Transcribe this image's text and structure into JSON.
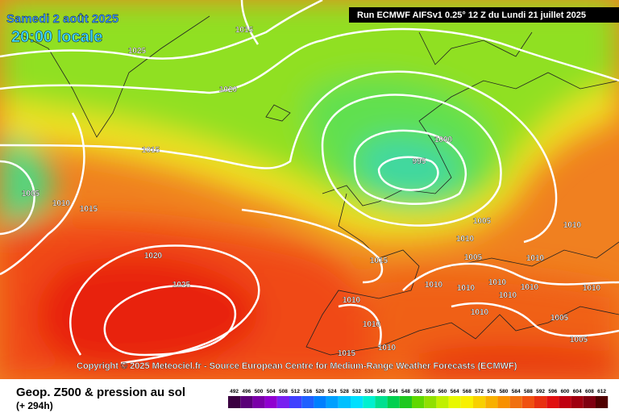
{
  "header": {
    "date": "Samedi 2 août 2025",
    "time": "20:00 locale",
    "run": "Run ECMWF AIFSv1 0.25° 12 Z du Lundi 21 juillet 2025"
  },
  "isobar_labels": [
    "1015",
    "1025",
    "1020",
    "1015",
    "1005",
    "1010",
    "1015",
    "1020",
    "1025",
    "995",
    "1000",
    "1005",
    "1010",
    "1010",
    "1005",
    "1010",
    "1015",
    "1010",
    "1010",
    "1010",
    "1010",
    "1010",
    "1010",
    "1010",
    "1010",
    "1010",
    "1005",
    "1010",
    "1015",
    "1005"
  ],
  "footer": {
    "copyright": "Copyright © 2025 Meteociel.fr - Source European Centre for Medium-Range Weather Forecasts (ECMWF)",
    "title": "Geop. Z500 & pression au sol",
    "lead_time": "(+ 294h)",
    "scale": [
      "492",
      "496",
      "500",
      "504",
      "508",
      "512",
      "516",
      "520",
      "524",
      "528",
      "532",
      "536",
      "540",
      "544",
      "548",
      "552",
      "556",
      "560",
      "564",
      "568",
      "572",
      "576",
      "580",
      "584",
      "588",
      "592",
      "596",
      "600",
      "604",
      "608",
      "612"
    ]
  }
}
